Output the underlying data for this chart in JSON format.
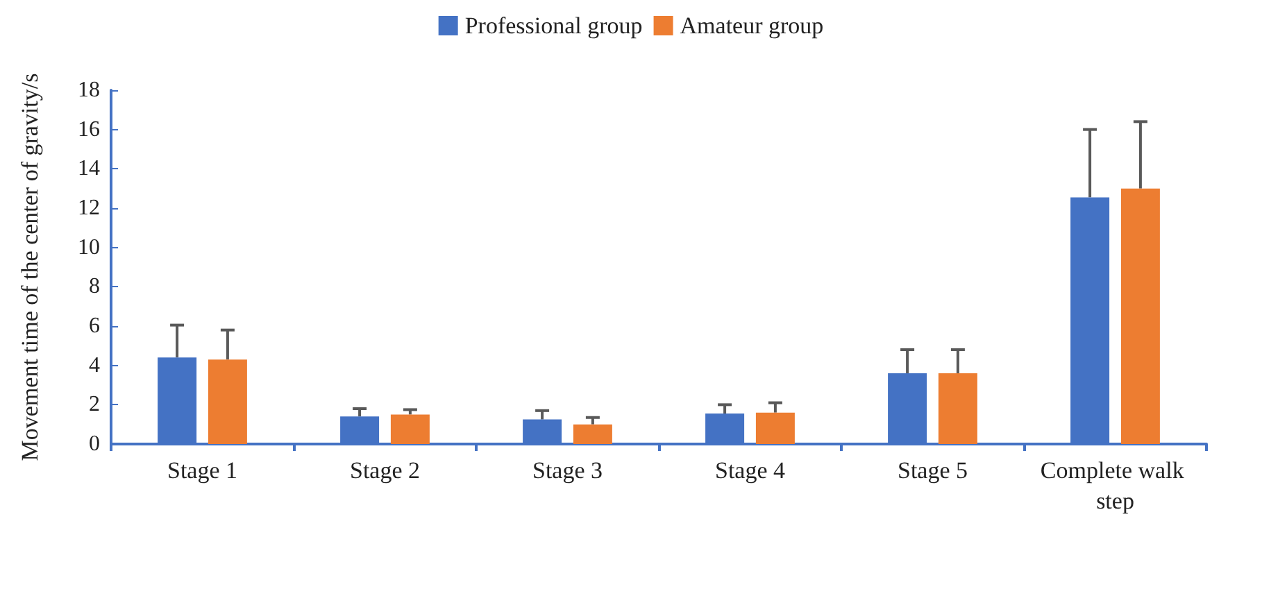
{
  "chart_data": {
    "type": "bar",
    "ylabel": "Movement time of the center of gravity/s",
    "categories": [
      "Stage 1",
      "Stage 2",
      "Stage 3",
      "Stage 4",
      "Stage 5",
      "Complete walk step"
    ],
    "series": [
      {
        "name": "Professional group",
        "color": "#4472c4",
        "values": [
          4.4,
          1.4,
          1.25,
          1.55,
          3.6,
          12.55
        ],
        "errors": [
          [
            4.4,
            6.05
          ],
          [
            1.4,
            1.8
          ],
          [
            1.25,
            1.7
          ],
          [
            1.55,
            2.0
          ],
          [
            3.6,
            4.8
          ],
          [
            12.55,
            16.0
          ]
        ]
      },
      {
        "name": "Amateur group",
        "color": "#ed7d31",
        "values": [
          4.3,
          1.5,
          1.0,
          1.6,
          3.6,
          13.0
        ],
        "errors": [
          [
            4.3,
            5.8
          ],
          [
            1.5,
            1.75
          ],
          [
            1.0,
            1.35
          ],
          [
            1.6,
            2.1
          ],
          [
            3.6,
            4.8
          ],
          [
            13.0,
            16.4
          ]
        ]
      }
    ],
    "ylim": [
      0,
      18
    ],
    "yticks": [
      0,
      2,
      4,
      6,
      8,
      10,
      12,
      14,
      16,
      18
    ],
    "grid": false,
    "legend": "top"
  }
}
